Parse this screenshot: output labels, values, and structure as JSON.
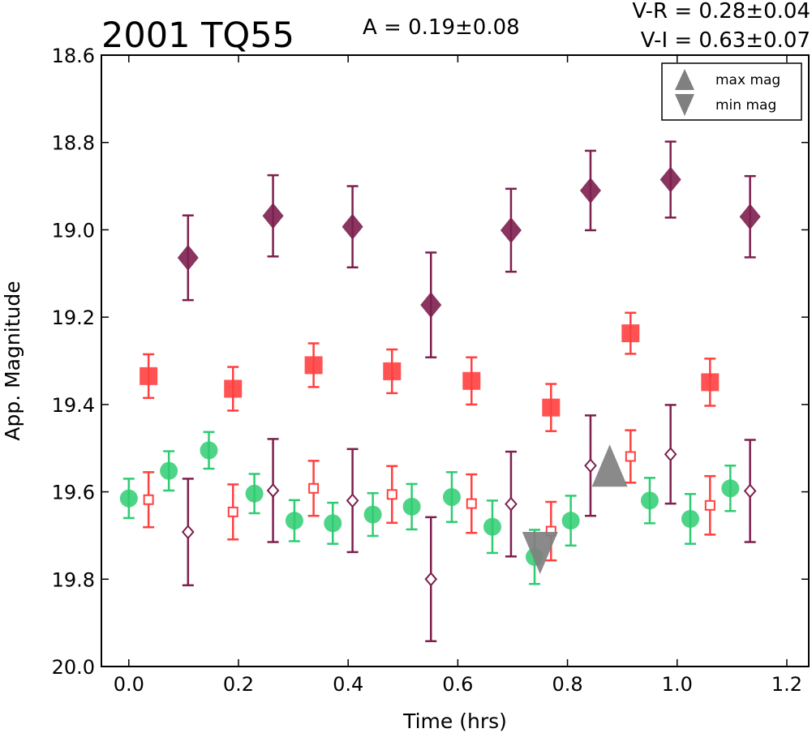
{
  "chart_data": {
    "type": "scatter",
    "title": "2001 TQ55",
    "amplitude_label": "A  = 0.19±0.08",
    "color_labels": [
      "V-R = 0.28±0.04",
      "V-I  = 0.63±0.07"
    ],
    "xlabel": "Time (hrs)",
    "ylabel": "App. Magnitude",
    "xlim": [
      -0.05,
      1.24
    ],
    "ylim": [
      20.0,
      18.6
    ],
    "y_inverted": true,
    "grid": false,
    "x_ticks": [
      "0.0",
      "0.2",
      "0.4",
      "0.6",
      "0.8",
      "1.0",
      "1.2"
    ],
    "y_ticks": [
      "18.6",
      "18.8",
      "19.0",
      "19.2",
      "19.4",
      "19.6",
      "19.8",
      "20.0"
    ],
    "legend": {
      "position": "top-right",
      "entries": [
        {
          "label": "max mag",
          "marker": "triangle-up",
          "color": "#808080"
        },
        {
          "label": "min mag",
          "marker": "triangle-down",
          "color": "#808080"
        }
      ]
    },
    "series": [
      {
        "marker": "circle",
        "filled": true,
        "color": "#2ecc71",
        "points": [
          {
            "x": 0.0,
            "y": 19.615,
            "err": 0.045
          },
          {
            "x": 0.073,
            "y": 19.552,
            "err": 0.045
          },
          {
            "x": 0.146,
            "y": 19.505,
            "err": 0.042
          },
          {
            "x": 0.229,
            "y": 19.604,
            "err": 0.045
          },
          {
            "x": 0.302,
            "y": 19.666,
            "err": 0.047
          },
          {
            "x": 0.372,
            "y": 19.672,
            "err": 0.047
          },
          {
            "x": 0.445,
            "y": 19.652,
            "err": 0.049
          },
          {
            "x": 0.516,
            "y": 19.634,
            "err": 0.052
          },
          {
            "x": 0.589,
            "y": 19.612,
            "err": 0.057
          },
          {
            "x": 0.663,
            "y": 19.68,
            "err": 0.06
          },
          {
            "x": 0.74,
            "y": 19.749,
            "err": 0.062
          },
          {
            "x": 0.806,
            "y": 19.666,
            "err": 0.057
          },
          {
            "x": 0.95,
            "y": 19.62,
            "err": 0.052
          },
          {
            "x": 1.024,
            "y": 19.662,
            "err": 0.057
          },
          {
            "x": 1.097,
            "y": 19.592,
            "err": 0.052
          }
        ]
      },
      {
        "marker": "square",
        "filled": true,
        "color": "#ff4040",
        "points": [
          {
            "x": 0.036,
            "y": 19.335,
            "err": 0.05
          },
          {
            "x": 0.19,
            "y": 19.364,
            "err": 0.05
          },
          {
            "x": 0.337,
            "y": 19.31,
            "err": 0.05
          },
          {
            "x": 0.48,
            "y": 19.324,
            "err": 0.05
          },
          {
            "x": 0.625,
            "y": 19.346,
            "err": 0.054
          },
          {
            "x": 0.77,
            "y": 19.407,
            "err": 0.054
          },
          {
            "x": 0.915,
            "y": 19.237,
            "err": 0.047
          },
          {
            "x": 1.06,
            "y": 19.349,
            "err": 0.054
          }
        ]
      },
      {
        "marker": "square",
        "filled": false,
        "color": "#ff4040",
        "points": [
          {
            "x": 0.036,
            "y": 19.618,
            "err": 0.063
          },
          {
            "x": 0.19,
            "y": 19.646,
            "err": 0.063
          },
          {
            "x": 0.337,
            "y": 19.592,
            "err": 0.063
          },
          {
            "x": 0.48,
            "y": 19.606,
            "err": 0.065
          },
          {
            "x": 0.625,
            "y": 19.627,
            "err": 0.067
          },
          {
            "x": 0.77,
            "y": 19.69,
            "err": 0.067
          },
          {
            "x": 0.915,
            "y": 19.519,
            "err": 0.06
          },
          {
            "x": 1.06,
            "y": 19.631,
            "err": 0.067
          }
        ]
      },
      {
        "marker": "diamond",
        "filled": true,
        "color": "#7d1f4f",
        "points": [
          {
            "x": 0.108,
            "y": 19.064,
            "err": 0.097
          },
          {
            "x": 0.263,
            "y": 18.968,
            "err": 0.093
          },
          {
            "x": 0.408,
            "y": 18.993,
            "err": 0.093
          },
          {
            "x": 0.551,
            "y": 19.172,
            "err": 0.12
          },
          {
            "x": 0.697,
            "y": 19.001,
            "err": 0.095
          },
          {
            "x": 0.842,
            "y": 18.91,
            "err": 0.091
          },
          {
            "x": 0.988,
            "y": 18.885,
            "err": 0.087
          },
          {
            "x": 1.133,
            "y": 18.97,
            "err": 0.093
          }
        ]
      },
      {
        "marker": "diamond",
        "filled": false,
        "color": "#7d1f4f",
        "points": [
          {
            "x": 0.108,
            "y": 19.692,
            "err": 0.122
          },
          {
            "x": 0.263,
            "y": 19.597,
            "err": 0.118
          },
          {
            "x": 0.408,
            "y": 19.62,
            "err": 0.118
          },
          {
            "x": 0.551,
            "y": 19.8,
            "err": 0.142
          },
          {
            "x": 0.697,
            "y": 19.628,
            "err": 0.12
          },
          {
            "x": 0.842,
            "y": 19.54,
            "err": 0.115
          },
          {
            "x": 0.988,
            "y": 19.514,
            "err": 0.113
          },
          {
            "x": 1.133,
            "y": 19.598,
            "err": 0.117
          }
        ]
      }
    ],
    "extrema": [
      {
        "type": "max",
        "marker": "triangle-up",
        "x": 0.877,
        "y": 19.54,
        "color": "#808080"
      },
      {
        "type": "min",
        "marker": "triangle-down",
        "x": 0.75,
        "y": 19.74,
        "color": "#808080"
      }
    ]
  }
}
